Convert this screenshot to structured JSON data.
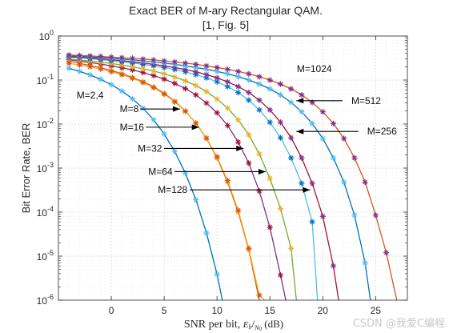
{
  "chart_data": {
    "type": "line",
    "title": "Exact BER of M-ary Rectangular QAM.",
    "subtitle": "[1, Fig. 5]",
    "xlabel": "SNR per bit, E_b/N_0 (dB)",
    "xlabel_parts": {
      "main": "SNR per bit, ",
      "e": "E",
      "b": "b",
      "slash": "/",
      "n": "N",
      "zero": "0",
      "unit": " (dB)"
    },
    "ylabel": "Bit Error Rate, BER",
    "xlim": [
      -5,
      28
    ],
    "ylim": [
      1e-06,
      1
    ],
    "yscale": "log",
    "xticks": [
      0,
      5,
      10,
      15,
      20,
      25
    ],
    "xtick_labels": [
      "0",
      "5",
      "10",
      "15",
      "20",
      "25"
    ],
    "ytick_labels": [
      {
        "base": "10",
        "exp": "0"
      },
      {
        "base": "10",
        "exp": "-1"
      },
      {
        "base": "10",
        "exp": "-2"
      },
      {
        "base": "10",
        "exp": "-3"
      },
      {
        "base": "10",
        "exp": "-4"
      },
      {
        "base": "10",
        "exp": "-5"
      },
      {
        "base": "10",
        "exp": "-6"
      }
    ],
    "grid": true,
    "series": [
      {
        "name": "M=2,4",
        "color": "#0072BD",
        "marker_color": "#4DBEEE",
        "x": [
          -4,
          -3,
          -2,
          -1,
          0,
          1,
          2,
          3,
          4,
          5,
          6,
          7,
          8,
          9,
          10,
          10.5
        ],
        "y": [
          0.186,
          0.158,
          0.131,
          0.104,
          0.0786,
          0.0563,
          0.0375,
          0.0229,
          0.0125,
          0.00595,
          0.00239,
          0.000773,
          0.000191,
          3.36e-05,
          3.87e-06,
          1e-06
        ]
      },
      {
        "name": "M=8",
        "color": "#D95319",
        "marker_color": "#EDB120",
        "x": [
          -4,
          -3,
          -2,
          -1,
          0,
          1,
          2,
          3,
          4,
          5,
          6,
          7,
          8,
          9,
          10,
          11,
          12,
          13,
          14
        ],
        "y": [
          0.27,
          0.24,
          0.215,
          0.19,
          0.165,
          0.14,
          0.115,
          0.092,
          0.07,
          0.05,
          0.033,
          0.02,
          0.0105,
          0.0047,
          0.0017,
          0.00048,
          0.0001,
          1.4e-05,
          1e-06
        ]
      },
      {
        "name": "M=16",
        "color": "#EDB120",
        "marker_color": "#D95319",
        "x": [
          -4,
          -3,
          -2,
          -1,
          0,
          1,
          2,
          3,
          4,
          5,
          6,
          7,
          8,
          9,
          10,
          11,
          12,
          13,
          14,
          14.5
        ],
        "y": [
          0.24,
          0.22,
          0.2,
          0.178,
          0.155,
          0.132,
          0.11,
          0.088,
          0.067,
          0.048,
          0.032,
          0.0195,
          0.0105,
          0.0048,
          0.0018,
          0.00052,
          0.00011,
          1.5e-05,
          1.3e-06,
          1e-06
        ]
      },
      {
        "name": "M=32",
        "color": "#7E2F8E",
        "marker_color": "#A2142F",
        "x": [
          -4,
          -3,
          -2,
          -1,
          0,
          1,
          2,
          3,
          4,
          5,
          6,
          7,
          8,
          9,
          10,
          11,
          12,
          13,
          14,
          15,
          16,
          16.5
        ],
        "y": [
          0.29,
          0.27,
          0.25,
          0.23,
          0.21,
          0.19,
          0.17,
          0.148,
          0.126,
          0.105,
          0.084,
          0.064,
          0.046,
          0.03,
          0.018,
          0.0093,
          0.0039,
          0.0013,
          0.0003,
          4.5e-05,
          3.7e-06,
          1e-06
        ]
      },
      {
        "name": "M=64",
        "color": "#77AC30",
        "marker_color": "#EDB120",
        "x": [
          -4,
          -3,
          -2,
          -1,
          0,
          1,
          2,
          3,
          4,
          5,
          6,
          7,
          8,
          9,
          10,
          11,
          12,
          13,
          14,
          15,
          16,
          17,
          17.5
        ],
        "y": [
          0.3,
          0.285,
          0.27,
          0.255,
          0.238,
          0.22,
          0.2,
          0.18,
          0.16,
          0.139,
          0.117,
          0.096,
          0.075,
          0.055,
          0.037,
          0.023,
          0.0125,
          0.0057,
          0.0021,
          0.00058,
          0.00012,
          1.5e-05,
          1e-06
        ]
      },
      {
        "name": "M=128",
        "color": "#4DBEEE",
        "marker_color": "#0072BD",
        "x": [
          -4,
          -3,
          -2,
          -1,
          0,
          1,
          2,
          3,
          4,
          5,
          6,
          7,
          8,
          9,
          10,
          11,
          12,
          13,
          14,
          15,
          16,
          17,
          18,
          19,
          19.5
        ],
        "y": [
          0.33,
          0.32,
          0.305,
          0.29,
          0.275,
          0.26,
          0.244,
          0.227,
          0.21,
          0.192,
          0.173,
          0.153,
          0.133,
          0.112,
          0.091,
          0.071,
          0.052,
          0.035,
          0.021,
          0.011,
          0.0049,
          0.0017,
          0.00045,
          6e-05,
          1e-06
        ]
      },
      {
        "name": "M=256",
        "color": "#A2142F",
        "marker_color": "#7E2F8E",
        "x": [
          -4,
          -3,
          -2,
          -1,
          0,
          1,
          2,
          3,
          4,
          5,
          6,
          7,
          8,
          9,
          10,
          11,
          12,
          13,
          14,
          15,
          16,
          17,
          18,
          19,
          20,
          21,
          21.5
        ],
        "y": [
          0.34,
          0.33,
          0.32,
          0.305,
          0.29,
          0.275,
          0.26,
          0.244,
          0.227,
          0.21,
          0.192,
          0.173,
          0.153,
          0.133,
          0.112,
          0.091,
          0.071,
          0.052,
          0.035,
          0.021,
          0.011,
          0.0049,
          0.0017,
          0.00045,
          8e-05,
          6e-06,
          1e-06
        ]
      },
      {
        "name": "M=512",
        "color": "#0072BD",
        "marker_color": "#4DBEEE",
        "x": [
          -4,
          -3,
          -2,
          -1,
          0,
          1,
          2,
          3,
          4,
          5,
          6,
          7,
          8,
          9,
          10,
          11,
          12,
          13,
          14,
          15,
          16,
          17,
          18,
          19,
          20,
          21,
          22,
          23,
          24,
          24.5
        ],
        "y": [
          0.355,
          0.345,
          0.335,
          0.325,
          0.313,
          0.3,
          0.287,
          0.273,
          0.258,
          0.243,
          0.227,
          0.21,
          0.193,
          0.175,
          0.157,
          0.138,
          0.119,
          0.1,
          0.081,
          0.063,
          0.046,
          0.031,
          0.019,
          0.0103,
          0.0047,
          0.0017,
          0.00048,
          8.5e-05,
          7e-06,
          1e-06
        ]
      },
      {
        "name": "M=1024",
        "color": "#D95319",
        "marker_color": "#7E2F8E",
        "x": [
          -4,
          -3,
          -2,
          -1,
          0,
          1,
          2,
          3,
          4,
          5,
          6,
          7,
          8,
          9,
          10,
          11,
          12,
          13,
          14,
          15,
          16,
          17,
          18,
          19,
          20,
          21,
          22,
          23,
          24,
          25,
          26,
          27
        ],
        "y": [
          0.37,
          0.36,
          0.352,
          0.343,
          0.333,
          0.322,
          0.311,
          0.299,
          0.286,
          0.272,
          0.258,
          0.243,
          0.227,
          0.21,
          0.193,
          0.175,
          0.157,
          0.138,
          0.119,
          0.1,
          0.081,
          0.063,
          0.046,
          0.031,
          0.019,
          0.0103,
          0.0047,
          0.0017,
          0.00048,
          8.5e-05,
          1.2e-05,
          1e-06
        ]
      }
    ],
    "annotations": [
      {
        "text": "M=1024",
        "x": 19.2,
        "y": 0.18,
        "arrow": false
      },
      {
        "text": "M=2,4",
        "x": -2.0,
        "y": 0.045,
        "arrow": false
      },
      {
        "text": "M=512",
        "x": 25.5,
        "y": 0.034,
        "arrow": true,
        "ax": 17.5,
        "ay": 0.034
      },
      {
        "text": "M=8",
        "x": 0.8,
        "y": 0.022,
        "arrow": true,
        "ax": 6.5,
        "ay": 0.022
      },
      {
        "text": "M=256",
        "x": 27.0,
        "y": 0.0068,
        "arrow": true,
        "ax": 17.5,
        "ay": 0.0068
      },
      {
        "text": "M=16",
        "x": 0.8,
        "y": 0.0085,
        "arrow": true,
        "ax": 8.3,
        "ay": 0.0085
      },
      {
        "text": "M=32",
        "x": 2.5,
        "y": 0.0028,
        "arrow": true,
        "ax": 12.5,
        "ay": 0.0028
      },
      {
        "text": "M=64",
        "x": 3.5,
        "y": 0.00083,
        "arrow": true,
        "ax": 14.6,
        "ay": 0.00083
      },
      {
        "text": "M=128",
        "x": 4.4,
        "y": 0.00032,
        "arrow": true,
        "ax": 18.8,
        "ay": 0.00032
      }
    ]
  },
  "watermark": "CSDN @我爱C编程"
}
